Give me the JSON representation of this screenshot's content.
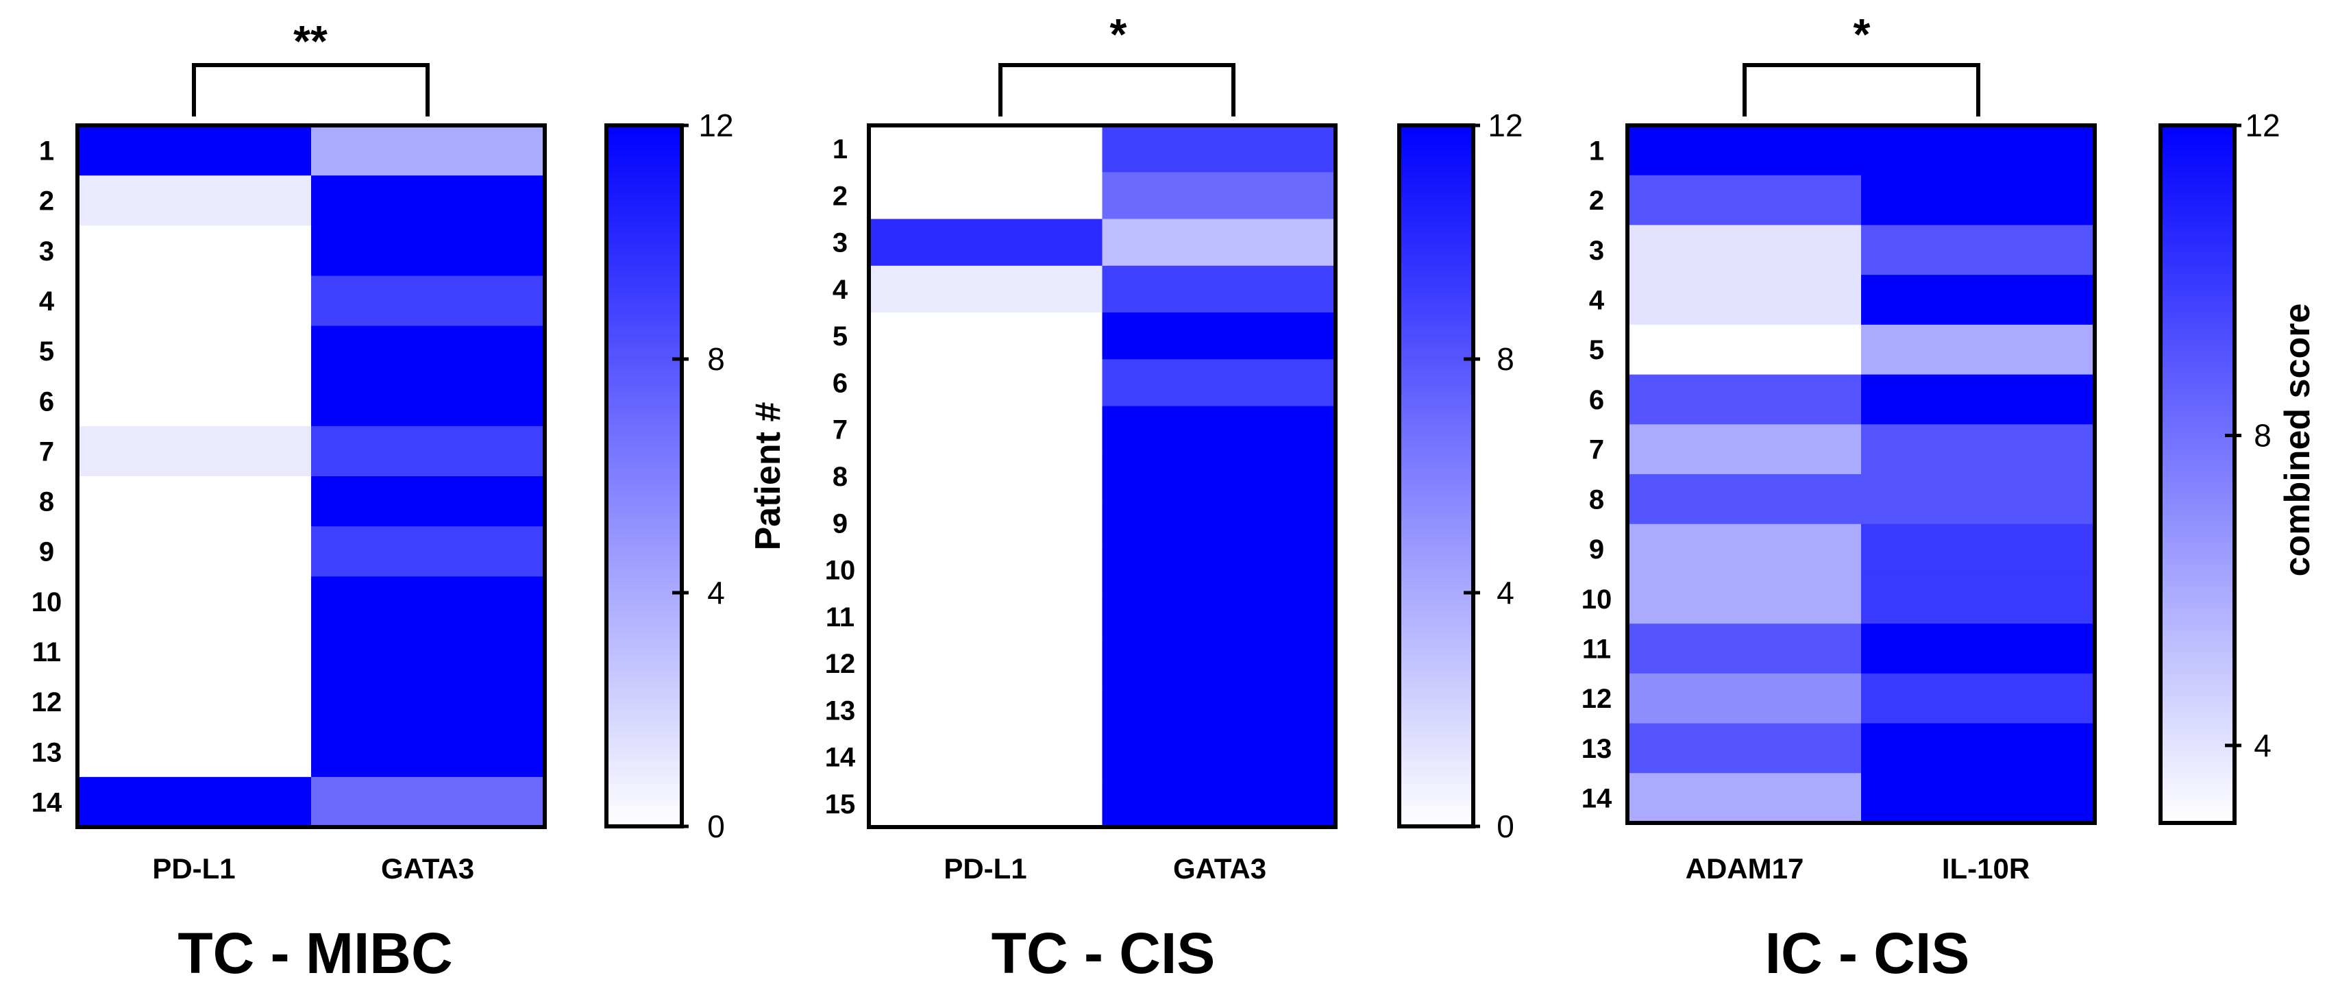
{
  "chart_data": [
    {
      "type": "heatmap",
      "title": "TC - MIBC",
      "significance": "**",
      "columns": [
        "PD-L1",
        "GATA3"
      ],
      "rows": [
        "1",
        "2",
        "3",
        "4",
        "5",
        "6",
        "7",
        "8",
        "9",
        "10",
        "11",
        "12",
        "13",
        "14"
      ],
      "values": [
        [
          12,
          4
        ],
        [
          1,
          12
        ],
        [
          0,
          12
        ],
        [
          0,
          9
        ],
        [
          0,
          12
        ],
        [
          0,
          12
        ],
        [
          1,
          9
        ],
        [
          0,
          12
        ],
        [
          0,
          9
        ],
        [
          0,
          12
        ],
        [
          0,
          12
        ],
        [
          0,
          12
        ],
        [
          0,
          12
        ],
        [
          12,
          7
        ]
      ],
      "colorbar": {
        "min": 0,
        "max": 12,
        "ticks": [
          0,
          4,
          8,
          12
        ],
        "label": ""
      }
    },
    {
      "type": "heatmap",
      "title": "TC - CIS",
      "significance": "*",
      "ylabel": "Patient #",
      "columns": [
        "PD-L1",
        "GATA3"
      ],
      "rows": [
        "1",
        "2",
        "3",
        "4",
        "5",
        "6",
        "7",
        "8",
        "9",
        "10",
        "11",
        "12",
        "13",
        "14",
        "15"
      ],
      "values": [
        [
          0,
          9
        ],
        [
          0,
          7
        ],
        [
          10,
          3
        ],
        [
          1,
          9
        ],
        [
          0,
          12
        ],
        [
          0,
          9
        ],
        [
          0,
          12
        ],
        [
          0,
          12
        ],
        [
          0,
          12
        ],
        [
          0,
          12
        ],
        [
          0,
          12
        ],
        [
          0,
          12
        ],
        [
          0,
          12
        ],
        [
          0,
          12
        ],
        [
          0,
          12
        ]
      ],
      "colorbar": {
        "min": 0,
        "max": 12,
        "ticks": [
          0,
          4,
          8,
          12
        ],
        "label": ""
      }
    },
    {
      "type": "heatmap",
      "title": "IC - CIS",
      "significance": "*",
      "columns": [
        "ADAM17",
        "IL-10R"
      ],
      "rows": [
        "1",
        "2",
        "3",
        "4",
        "5",
        "6",
        "7",
        "8",
        "9",
        "10",
        "11",
        "12",
        "13",
        "14"
      ],
      "values": [
        [
          12,
          12
        ],
        [
          9,
          12
        ],
        [
          4,
          9
        ],
        [
          4,
          12
        ],
        [
          3,
          6
        ],
        [
          9,
          12
        ],
        [
          6,
          9
        ],
        [
          9,
          9
        ],
        [
          6,
          10
        ],
        [
          6,
          10
        ],
        [
          9,
          12
        ],
        [
          7,
          10
        ],
        [
          9,
          12
        ],
        [
          6,
          12
        ]
      ],
      "colorbar": {
        "min": 3,
        "max": 12,
        "ticks": [
          4,
          8,
          12
        ],
        "label": "combined score"
      }
    }
  ]
}
